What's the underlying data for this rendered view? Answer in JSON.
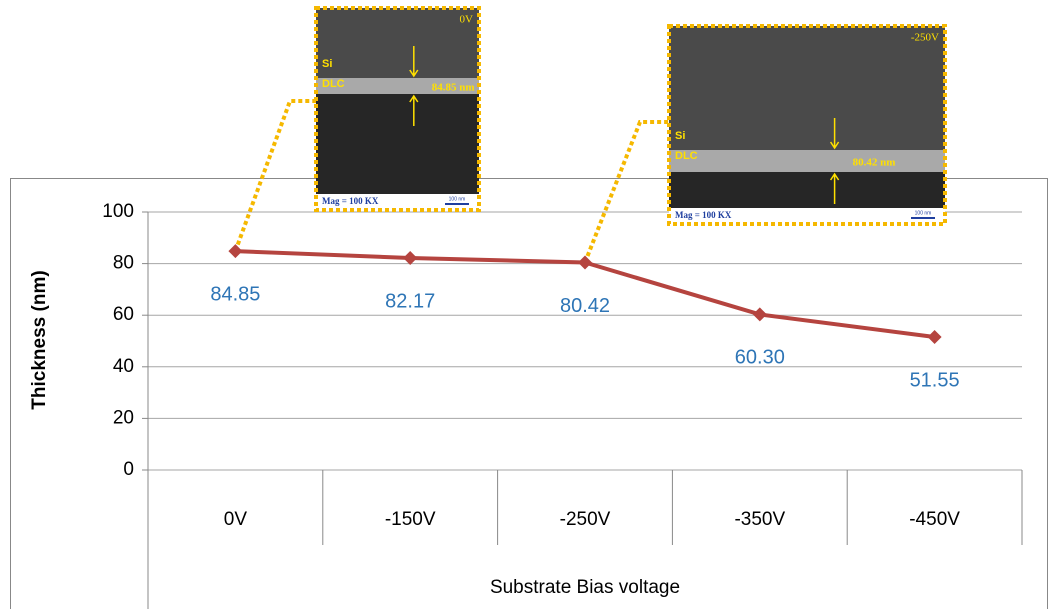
{
  "chart_data": {
    "type": "line",
    "x_axis_title": "Substrate Bias voltage",
    "y_axis_title": "Thickness (nm)",
    "categories": [
      "0V",
      "-150V",
      "-250V",
      "-350V",
      "-450V"
    ],
    "values": [
      84.85,
      82.17,
      80.42,
      60.3,
      51.55
    ],
    "value_labels": [
      "84.85",
      "82.17",
      "80.42",
      "60.30",
      "51.55"
    ],
    "color": "#b5443f",
    "label_color": "#2e75b6",
    "ylim": [
      0,
      100
    ],
    "yticks": [
      0,
      20,
      40,
      60,
      80,
      100
    ],
    "grid": true,
    "insets": [
      {
        "label": "0V",
        "layers": [
          "Si",
          "DLC"
        ],
        "measurement": "84.85 nm",
        "magnification": "Mag = 100 KX",
        "scale_bar": "100 nm"
      },
      {
        "label": "-250V",
        "layers": [
          "Si",
          "DLC"
        ],
        "measurement": "80.42 nm",
        "magnification": "Mag = 100 KX",
        "scale_bar": "100 nm"
      }
    ]
  }
}
